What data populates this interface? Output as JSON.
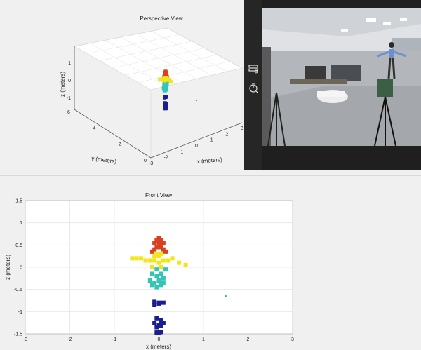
{
  "perspective": {
    "title": "Perspective View",
    "xlabel": "x (meters)",
    "ylabel": "y (meters)",
    "zlabel": "z (meters)",
    "x_ticks": [
      "-3",
      "-2",
      "-1",
      "0",
      "1",
      "2",
      "3"
    ],
    "y_ticks": [
      "0",
      "2",
      "4",
      "6"
    ],
    "z_ticks": [
      "1",
      "0",
      "-1"
    ]
  },
  "front": {
    "title": "Front View",
    "xlabel": "x (meters)",
    "ylabel": "z (meters)",
    "x_ticks": [
      "-3",
      "-2",
      "-1",
      "0",
      "1",
      "2",
      "3"
    ],
    "y_ticks": [
      "1.5",
      "1",
      "0.5",
      "0",
      "-0.5",
      "-1",
      "-1.5"
    ]
  },
  "colors": {
    "background": "#f0f0f0",
    "axes_bg": "#ffffff",
    "grid": "#e6e6e6",
    "video_bg": "#1f1f1f",
    "point_top": "#d9401f",
    "point_mid": "#f2e51b",
    "point_low": "#31c6b8",
    "point_bottom": "#1b1f8c",
    "outlier": "#2aa39a"
  },
  "video_toolbar": {
    "icons": [
      "monitor-settings-icon",
      "timer-icon"
    ]
  },
  "chart_data": [
    {
      "type": "scatter",
      "title": "Front View",
      "xlabel": "x (meters)",
      "ylabel": "z (meters)",
      "xlim": [
        -3,
        3
      ],
      "ylim": [
        -1.5,
        1.5
      ],
      "grid": true,
      "series": [
        {
          "x": [
            0.0,
            -0.05,
            0.05,
            -0.1,
            0.1,
            0.0,
            -0.05,
            0.05,
            -0.1,
            0.1,
            -0.15,
            0.15,
            -0.05,
            0.05,
            -0.1,
            0.0,
            -0.6,
            -0.5,
            -0.4,
            -0.3,
            -0.2,
            -0.1,
            0.0,
            0.1,
            0.2,
            0.3,
            0.45,
            0.6,
            -0.15,
            -0.05,
            0.05,
            0.15,
            -0.15,
            -0.05,
            0.05,
            0.1,
            -0.2,
            -0.1,
            0.0,
            0.1,
            -0.15,
            -0.05,
            0.05,
            -0.1,
            0.0,
            -0.1,
            0.0,
            0.1,
            -0.05,
            0.05,
            -0.1,
            0.0,
            0.1,
            -0.05,
            0.05,
            0.0,
            -0.05,
            0.05,
            1.5
          ],
          "y": [
            0.65,
            0.6,
            0.6,
            0.55,
            0.55,
            0.5,
            0.45,
            0.45,
            0.4,
            0.4,
            0.35,
            0.35,
            0.3,
            0.3,
            0.25,
            0.25,
            0.2,
            0.2,
            0.2,
            0.15,
            0.15,
            0.15,
            0.1,
            0.15,
            0.15,
            0.2,
            0.1,
            0.05,
            0.0,
            -0.05,
            0.0,
            -0.05,
            -0.15,
            -0.2,
            -0.15,
            -0.25,
            -0.3,
            -0.35,
            -0.3,
            -0.35,
            -0.4,
            -0.45,
            -0.4,
            -0.78,
            -0.8,
            -0.85,
            -0.82,
            -0.8,
            -1.15,
            -1.2,
            -1.25,
            -1.3,
            -1.25,
            -1.35,
            -1.32,
            -1.47,
            -1.47,
            -1.46,
            -0.65
          ]
        }
      ]
    }
  ]
}
